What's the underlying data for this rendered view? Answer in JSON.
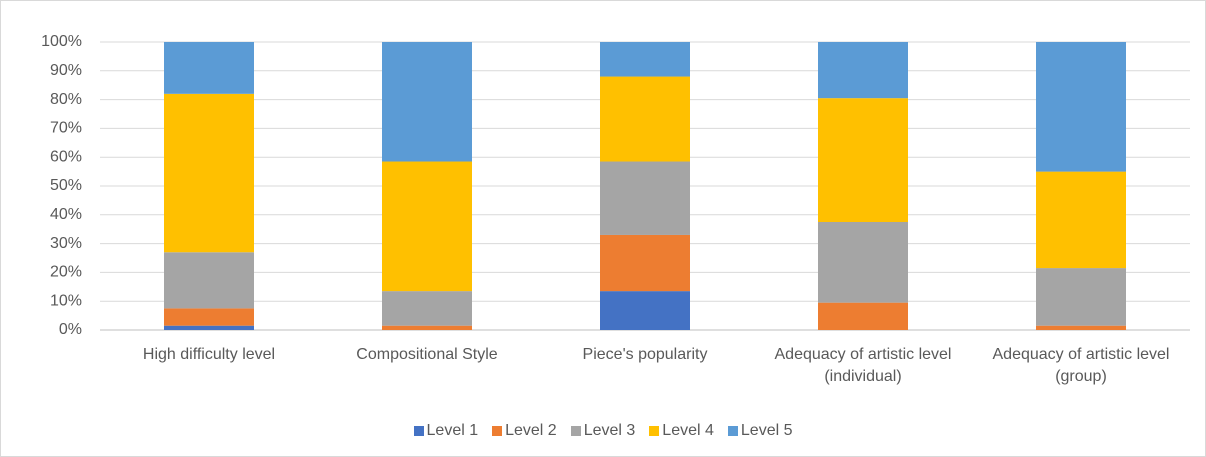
{
  "chart_data": {
    "type": "stacked_bar_100",
    "categories": [
      "High difficulty level",
      "Compositional Style",
      "Piece's popularity",
      "Adequacy of artistic level (individual)",
      "Adequacy of artistic level (group)"
    ],
    "series": [
      {
        "name": "Level 1",
        "color": "#4472c4",
        "values": [
          1.5,
          0,
          13.5,
          0,
          0
        ]
      },
      {
        "name": "Level 2",
        "color": "#ed7d31",
        "values": [
          6,
          1.5,
          19.5,
          9.5,
          1.5
        ]
      },
      {
        "name": "Level 3",
        "color": "#a5a5a5",
        "values": [
          19.5,
          12,
          25.5,
          28,
          20
        ]
      },
      {
        "name": "Level 4",
        "color": "#ffc000",
        "values": [
          55,
          45,
          29.5,
          43,
          33.5
        ]
      },
      {
        "name": "Level 5",
        "color": "#5b9bd5",
        "values": [
          18,
          41.5,
          12,
          19.5,
          45
        ]
      }
    ],
    "ylim": [
      0,
      100
    ],
    "yticks": [
      {
        "value": 0,
        "label": "0%"
      },
      {
        "value": 10,
        "label": "10%"
      },
      {
        "value": 20,
        "label": "20%"
      },
      {
        "value": 30,
        "label": "30%"
      },
      {
        "value": 40,
        "label": "40%"
      },
      {
        "value": 50,
        "label": "50%"
      },
      {
        "value": 60,
        "label": "60%"
      },
      {
        "value": 70,
        "label": "70%"
      },
      {
        "value": 80,
        "label": "80%"
      },
      {
        "value": 90,
        "label": "90%"
      },
      {
        "value": 100,
        "label": "100%"
      }
    ],
    "grid": true,
    "legend": "bottom"
  }
}
